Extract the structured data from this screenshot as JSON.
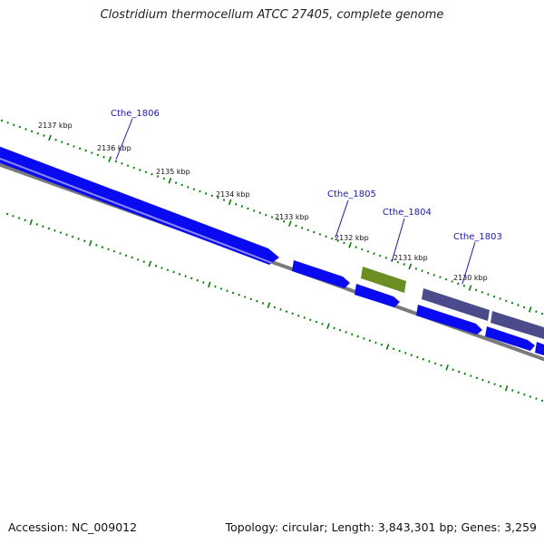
{
  "title": "Clostridium thermocellum ATCC 27405, complete genome",
  "footer": {
    "accession": "Accession: NC_009012",
    "stats": "Topology: circular; Length: 3,843,301 bp; Genes: 3,259"
  },
  "colors": {
    "backbone": "#7a7a7a",
    "cds_forward": "#0a0af0",
    "cds_highlight": "#6b8e23",
    "cds_other": "#4b4b8c",
    "tick": "#0a7a0a",
    "label": "#1a1aa8"
  },
  "ticks": [
    {
      "label": "2137 kbp"
    },
    {
      "label": "2136 kbp"
    },
    {
      "label": "2135 kbp"
    },
    {
      "label": "2134 kbp"
    },
    {
      "label": "2133 kbp"
    },
    {
      "label": "2132 kbp"
    },
    {
      "label": "2131 kbp"
    },
    {
      "label": "2130 kbp"
    }
  ],
  "genes": [
    {
      "label": "Cthe_1806"
    },
    {
      "label": "Cthe_1805"
    },
    {
      "label": "Cthe_1804"
    },
    {
      "label": "Cthe_1803"
    }
  ]
}
